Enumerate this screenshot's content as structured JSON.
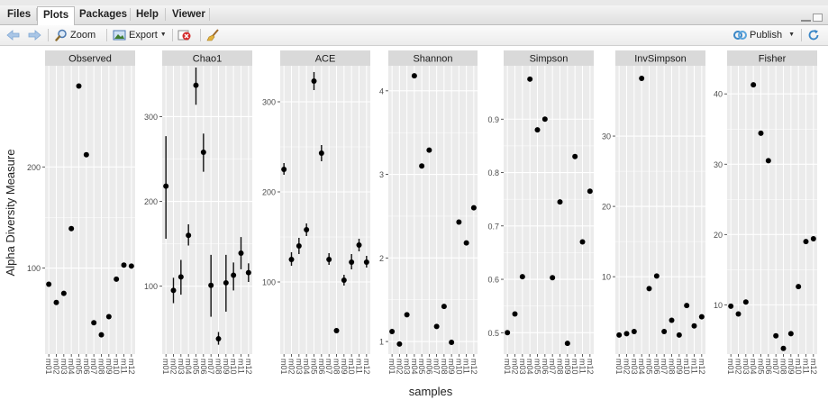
{
  "tabs": [
    {
      "label": "Files",
      "active": false
    },
    {
      "label": "Plots",
      "active": true
    },
    {
      "label": "Packages",
      "active": false
    },
    {
      "label": "Help",
      "active": false
    },
    {
      "label": "Viewer",
      "active": false
    }
  ],
  "toolbar": {
    "zoom_label": "Zoom",
    "export_label": "Export",
    "publish_label": "Publish"
  },
  "icons": [
    "back-arrow-icon",
    "forward-arrow-icon",
    "zoom-icon",
    "export-icon",
    "remove-plot-icon",
    "broom-icon",
    "publish-icon",
    "refresh-icon"
  ],
  "colors": {
    "panel_bg": "#ebebeb",
    "strip_bg": "#d9d9d9",
    "grid": "#ffffff",
    "point": "#000000"
  },
  "chart_data": {
    "type": "scatter",
    "xlabel": "samples",
    "ylabel": "Alpha Diversity Measure",
    "categories": [
      "m01",
      "m02",
      "m03",
      "m04",
      "m05",
      "m06",
      "m07",
      "m08",
      "m09",
      "m10",
      "m11",
      "m12"
    ],
    "grid": true,
    "panels": [
      {
        "title": "Observed",
        "ylim": [
          15,
          300
        ],
        "ticks": [
          100,
          200
        ],
        "values": [
          84,
          66,
          75,
          139,
          280,
          212,
          46,
          34,
          52,
          89,
          103,
          102
        ]
      },
      {
        "title": "Chao1",
        "ylim": [
          20,
          360
        ],
        "ticks": [
          100,
          200,
          300
        ],
        "values": [
          218,
          95,
          111,
          160,
          337,
          258,
          101,
          38,
          104,
          113,
          139,
          116
        ],
        "err": [
          [
            156,
            277
          ],
          [
            80,
            110
          ],
          [
            90,
            131
          ],
          [
            148,
            173
          ],
          [
            314,
            358
          ],
          [
            235,
            280
          ],
          [
            64,
            137
          ],
          [
            31,
            46
          ],
          [
            70,
            137
          ],
          [
            95,
            128
          ],
          [
            120,
            158
          ],
          [
            105,
            127
          ]
        ]
      },
      {
        "title": "ACE",
        "ylim": [
          20,
          340
        ],
        "ticks": [
          100,
          200,
          300
        ],
        "values": [
          225,
          125,
          140,
          158,
          323,
          243,
          125,
          46,
          102,
          122,
          141,
          122
        ],
        "err": [
          [
            219,
            232
          ],
          [
            118,
            133
          ],
          [
            131,
            149
          ],
          [
            151,
            165
          ],
          [
            313,
            333
          ],
          [
            234,
            252
          ],
          [
            119,
            132
          ],
          [
            43,
            49
          ],
          [
            96,
            108
          ],
          [
            114,
            131
          ],
          [
            134,
            148
          ],
          [
            116,
            129
          ]
        ]
      },
      {
        "title": "Shannon",
        "ylim": [
          0.85,
          4.3
        ],
        "ticks": [
          1,
          2,
          3,
          4
        ],
        "values": [
          1.12,
          0.97,
          1.32,
          4.18,
          3.1,
          3.29,
          1.18,
          1.42,
          0.99,
          2.43,
          2.18,
          2.6
        ]
      },
      {
        "title": "Simpson",
        "ylim": [
          0.46,
          1.0
        ],
        "ticks": [
          0.5,
          0.6,
          0.7,
          0.8,
          0.9
        ],
        "values": [
          0.5,
          0.535,
          0.605,
          0.975,
          0.88,
          0.9,
          0.603,
          0.745,
          0.48,
          0.83,
          0.67,
          0.765
        ]
      },
      {
        "title": "InvSimpson",
        "ylim": [
          -1,
          40
        ],
        "ticks": [
          10,
          20,
          30
        ],
        "values": [
          1.7,
          1.9,
          2.2,
          38.2,
          8.3,
          10.1,
          2.2,
          3.8,
          1.7,
          5.9,
          3.0,
          4.3
        ]
      },
      {
        "title": "Fisher",
        "ylim": [
          3,
          44
        ],
        "ticks": [
          10,
          20,
          30,
          40
        ],
        "values": [
          9.8,
          8.7,
          10.4,
          41.3,
          34.4,
          30.5,
          5.6,
          3.8,
          5.9,
          12.6,
          19.0,
          19.4
        ]
      }
    ]
  }
}
